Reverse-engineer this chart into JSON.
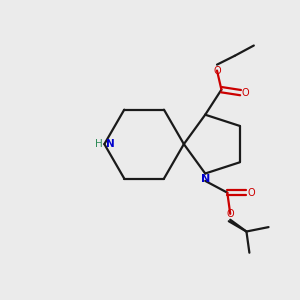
{
  "background_color": "#ebebeb",
  "bond_color": "#1a1a1a",
  "nitrogen_color": "#0000cc",
  "nh_nitrogen_color": "#2e8b57",
  "oxygen_color": "#cc0000",
  "line_width": 1.6,
  "figsize": [
    3.0,
    3.0
  ],
  "dpi": 100,
  "xlim": [
    0,
    10
  ],
  "ylim": [
    0,
    10
  ]
}
